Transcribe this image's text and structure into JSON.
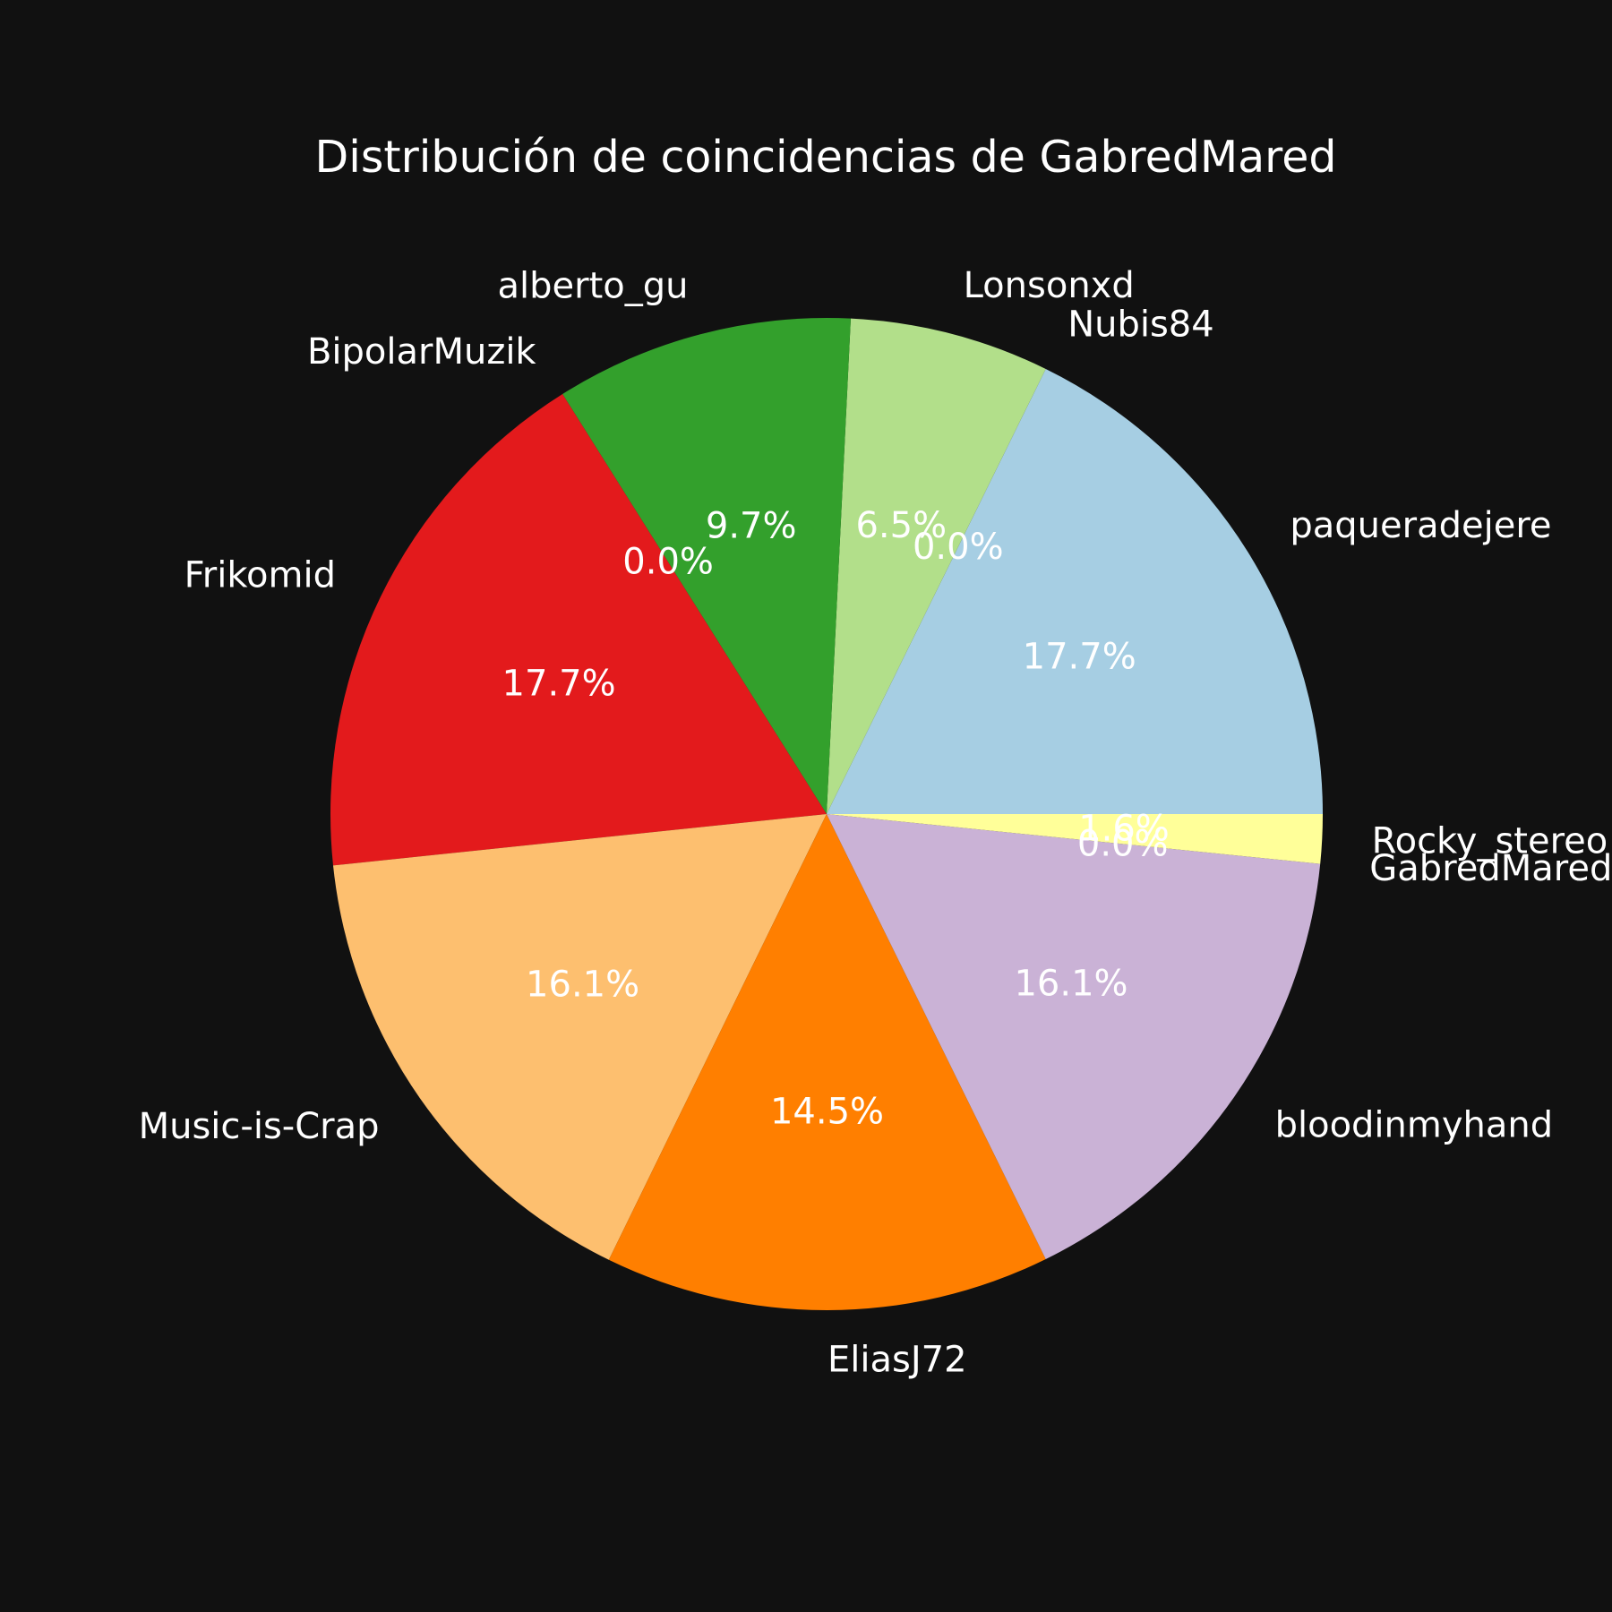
{
  "chart_data": {
    "type": "pie",
    "title": "Distribución de coincidencias de GabredMared",
    "start_angle_deg": 0,
    "direction": "counterclockwise",
    "slices": [
      {
        "label": "paqueradejere",
        "value": 17.7,
        "pct_label": "17.7%",
        "color": "#a6cee3"
      },
      {
        "label": "Nubis84",
        "value": 0.0,
        "pct_label": "0.0%",
        "color": "#1f78b4"
      },
      {
        "label": "Lonsonxd",
        "value": 6.5,
        "pct_label": "6.5%",
        "color": "#b2df8a"
      },
      {
        "label": "alberto_gu",
        "value": 9.7,
        "pct_label": "9.7%",
        "color": "#33a02c"
      },
      {
        "label": "BipolarMuzik",
        "value": 0.0,
        "pct_label": "0.0%",
        "color": "#fb9a99"
      },
      {
        "label": "Frikomid",
        "value": 17.7,
        "pct_label": "17.7%",
        "color": "#e31a1c"
      },
      {
        "label": "Music-is-Crap",
        "value": 16.1,
        "pct_label": "16.1%",
        "color": "#fdbf6f"
      },
      {
        "label": "EliasJ72",
        "value": 14.5,
        "pct_label": "14.5%",
        "color": "#ff7f00"
      },
      {
        "label": "bloodinmyhand",
        "value": 16.1,
        "pct_label": "16.1%",
        "color": "#cab2d6"
      },
      {
        "label": "GabredMared",
        "value": 0.0,
        "pct_label": "0.0%",
        "color": "#6a3d9a"
      },
      {
        "label": "Rocky_stereo",
        "value": 1.6,
        "pct_label": "1.6%",
        "color": "#ffff99"
      }
    ]
  },
  "colors": {
    "background": "#111111",
    "text": "#ffffff"
  }
}
